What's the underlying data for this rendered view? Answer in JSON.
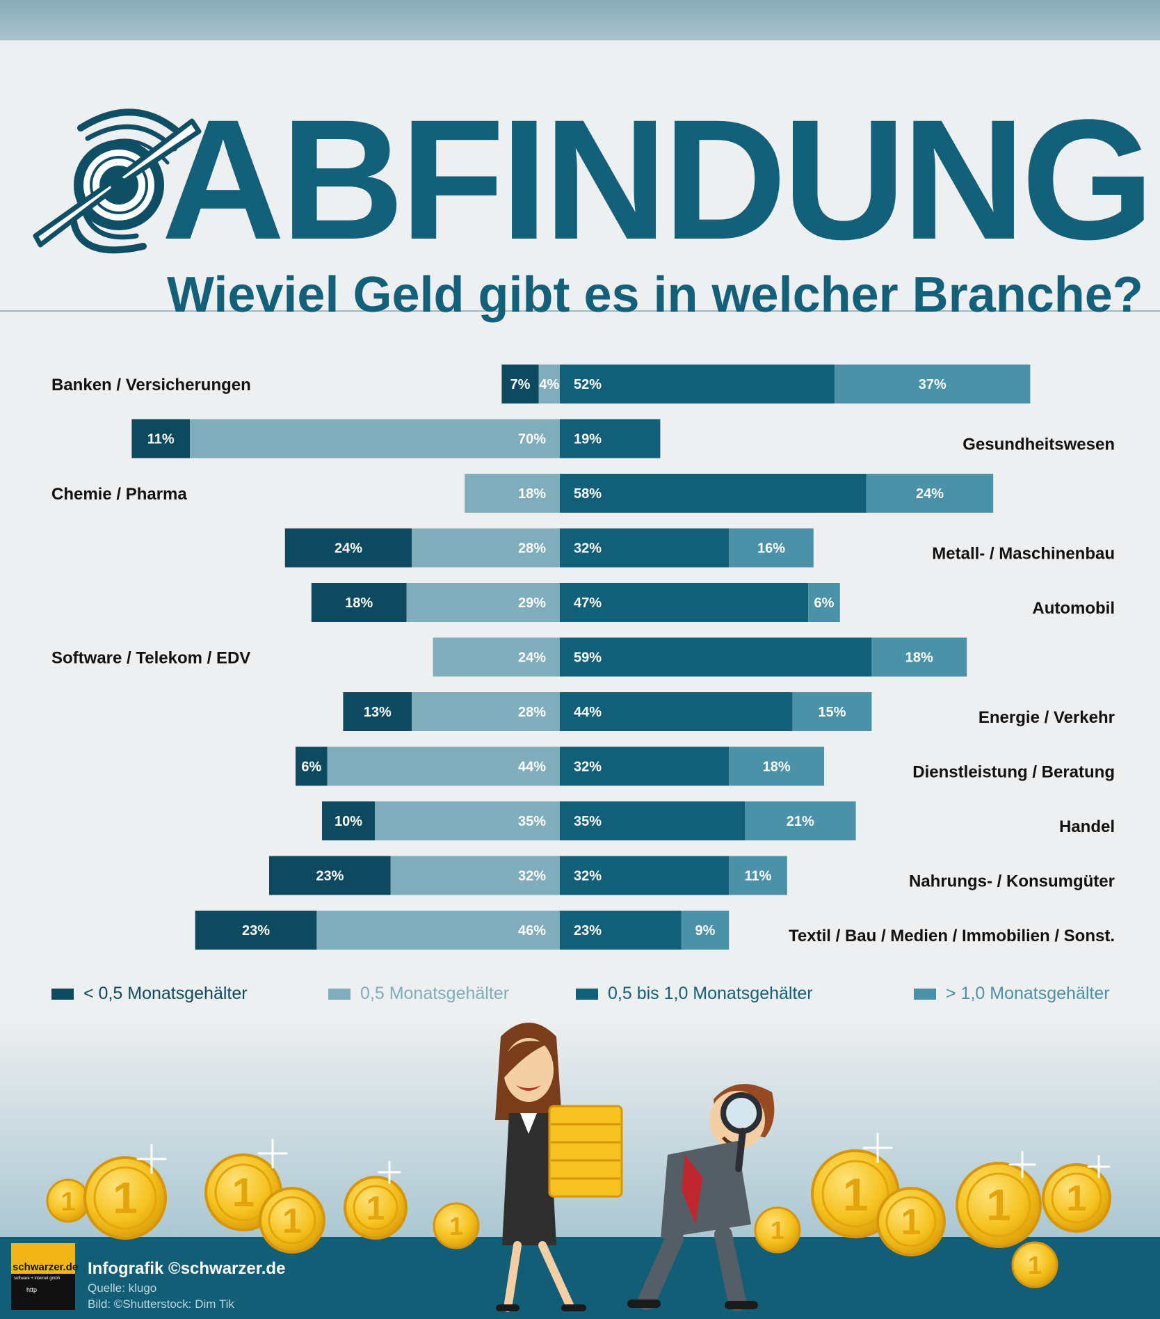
{
  "header": {
    "title": "ABFINDUNG",
    "subtitle": "Wieviel Geld gibt es in welcher Branche?"
  },
  "colors": {
    "lt05": "#0d4a60",
    "eq05": "#80adbb",
    "b05_10": "#115f78",
    "gt10": "#4b91a7",
    "title": "#13607a"
  },
  "chart_data": {
    "type": "bar",
    "orientation": "horizontal",
    "stacked": true,
    "diverging": true,
    "unit": "%",
    "series_names": [
      "< 0,5 Monatsgehälter",
      "0,5 Monatsgehälter",
      "0,5 bis 1,0 Monatsgehälter",
      "> 1,0 Monatsgehälter"
    ],
    "categories": [
      "Banken / Versicherungen",
      "Gesundheitswesen",
      "Chemie / Pharma",
      "Metall- / Maschinenbau",
      "Automobil",
      "Software / Telekom / EDV",
      "Energie / Verkehr",
      "Dienstleistung / Beratung",
      "Handel",
      "Nahrungs- / Konsumgüter",
      "Textil / Bau / Medien / Immobilien / Sonst."
    ],
    "label_side": [
      "left",
      "right",
      "left",
      "right",
      "right",
      "left",
      "right",
      "right",
      "right",
      "right",
      "right"
    ],
    "series": [
      {
        "name": "< 0,5 Monatsgehälter",
        "values": [
          7,
          11,
          0,
          24,
          18,
          0,
          13,
          6,
          10,
          23,
          23
        ]
      },
      {
        "name": "0,5 Monatsgehälter",
        "values": [
          4,
          70,
          18,
          28,
          29,
          24,
          28,
          44,
          35,
          32,
          46
        ]
      },
      {
        "name": "0,5 bis 1,0 Monatsgehälter",
        "values": [
          52,
          19,
          58,
          32,
          47,
          59,
          44,
          32,
          35,
          32,
          23
        ]
      },
      {
        "name": "> 1,0 Monatsgehälter",
        "values": [
          37,
          0,
          24,
          16,
          6,
          18,
          15,
          18,
          21,
          11,
          9
        ]
      }
    ]
  },
  "legend": {
    "items": [
      {
        "label": "< 0,5 Monatsgehälter"
      },
      {
        "label": "0,5 Monatsgehälter"
      },
      {
        "label": "0,5 bis 1,0 Monatsgehälter"
      },
      {
        "label": "> 1,0 Monatsgehälter"
      }
    ]
  },
  "illustration": {
    "coin_label": "1"
  },
  "footer": {
    "brand_name": "schwarzer.de",
    "brand_tagline": "software + internet gmbh",
    "brand_small": "http",
    "credit": "Infografik ©schwarzer.de",
    "source": "Quelle: klugo",
    "image_credit": "Bild: ©Shutterstock: Dim Tik"
  }
}
